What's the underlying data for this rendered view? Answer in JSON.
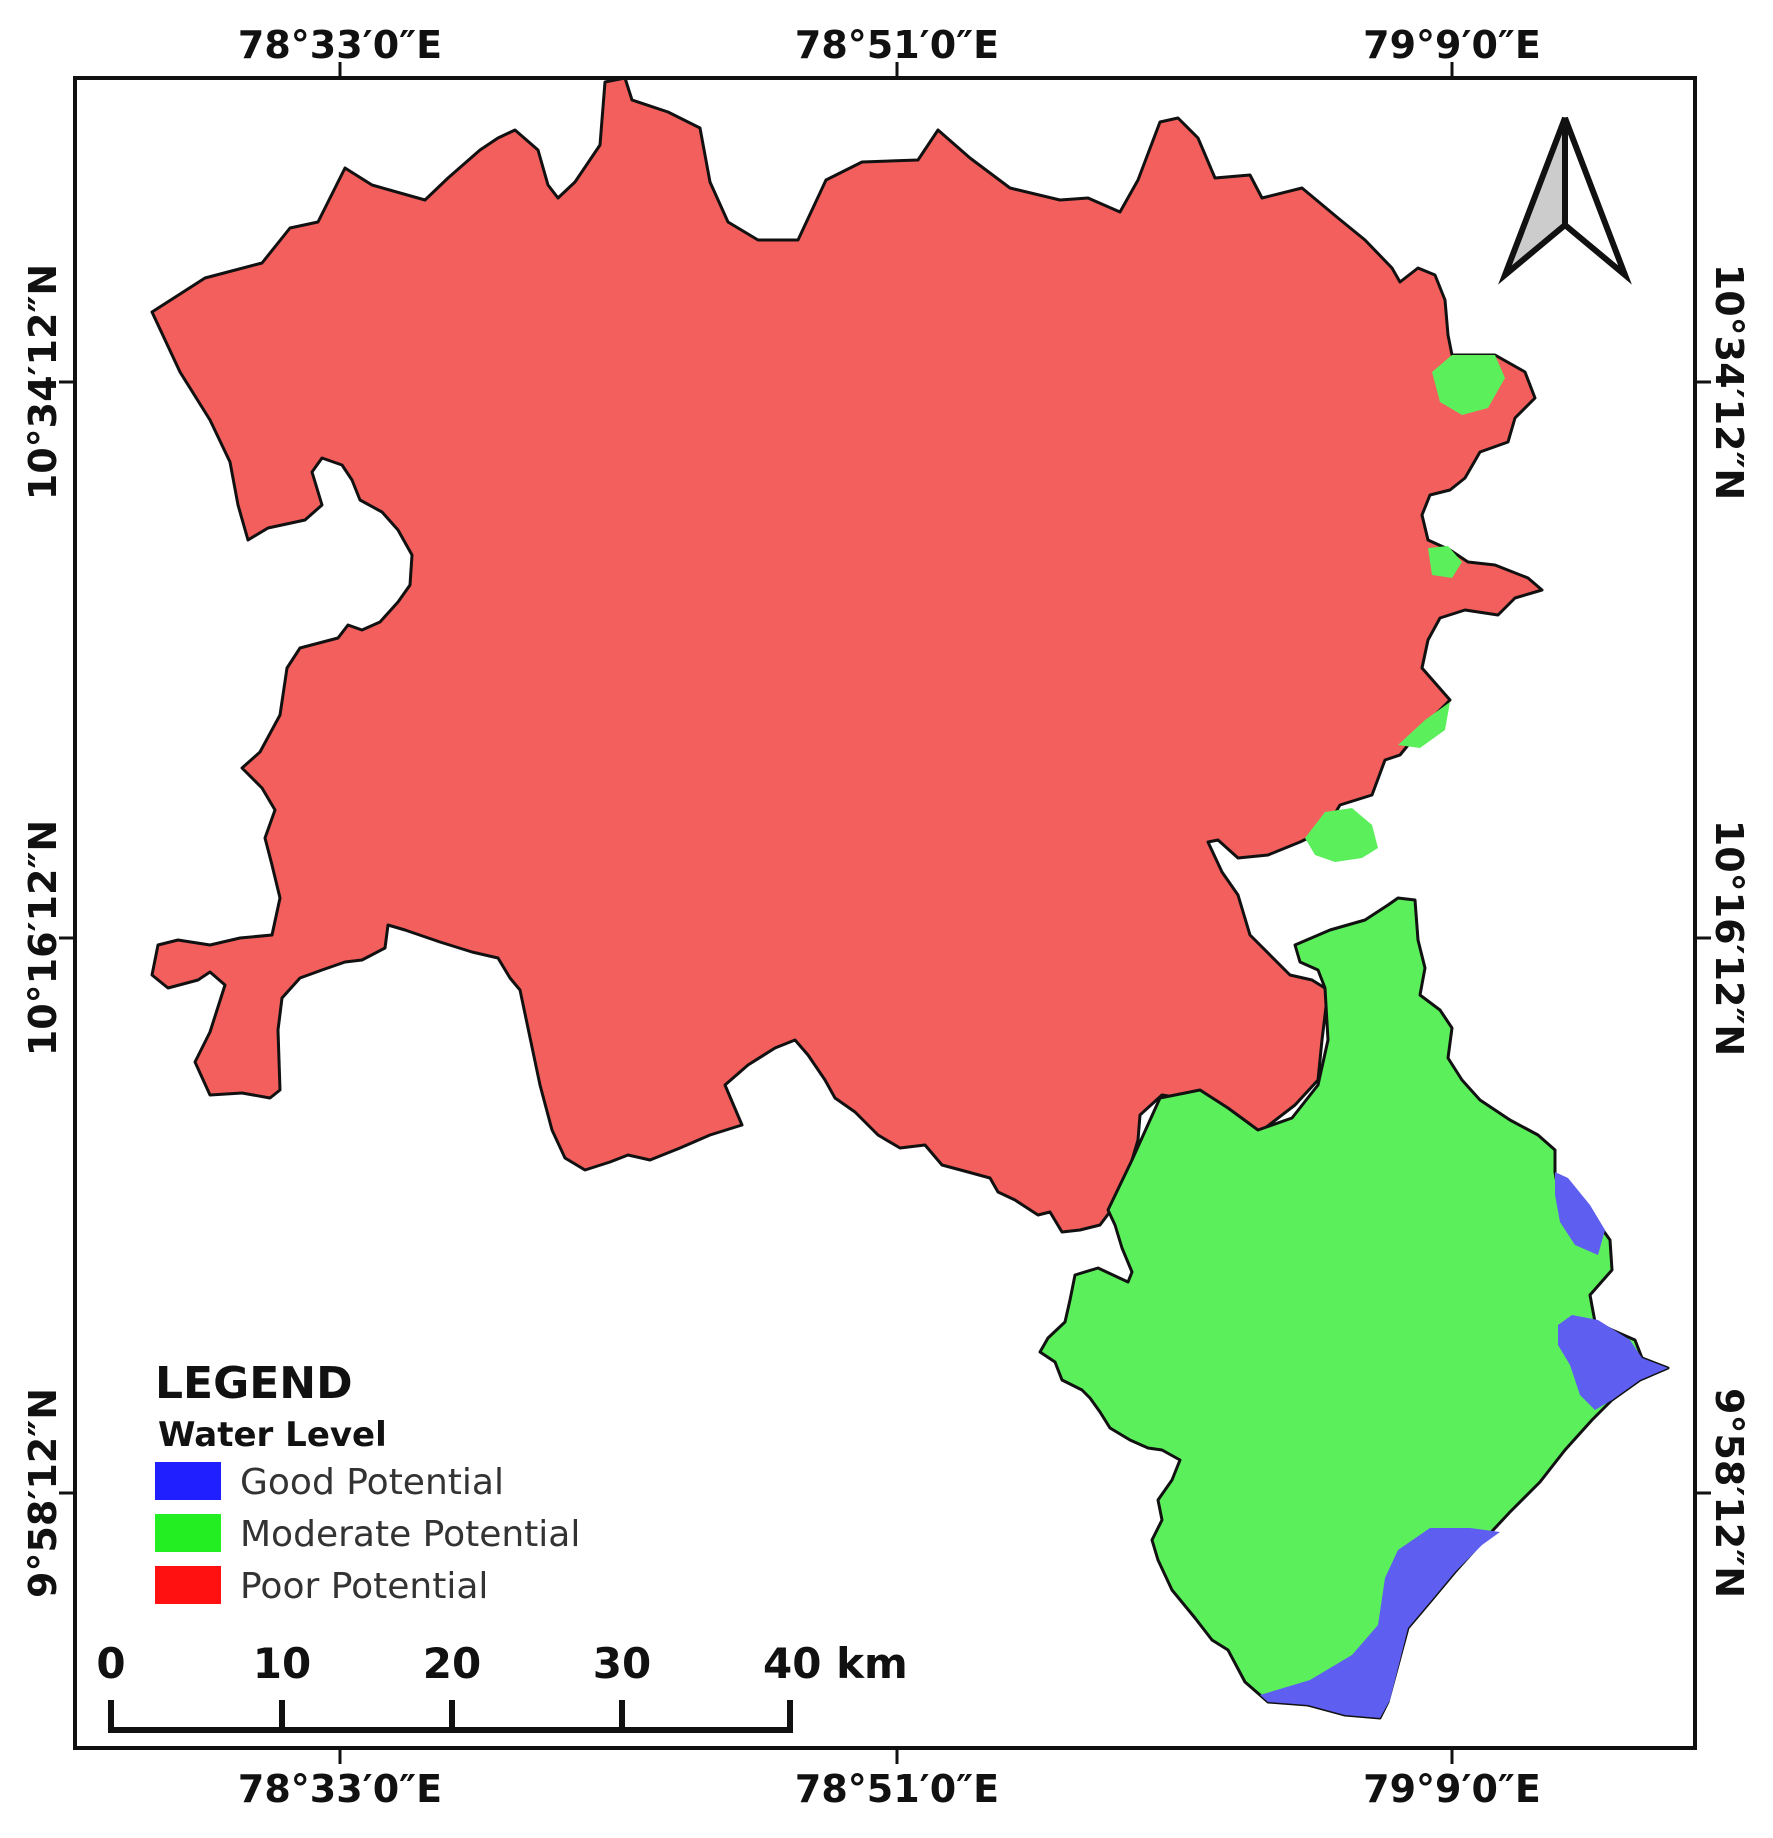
{
  "map": {
    "top_labels": [
      "78°33′0″E",
      "78°51′0″E",
      "79°9′0″E"
    ],
    "bottom_labels": [
      "78°33′0″E",
      "78°51′0″E",
      "79°9′0″E"
    ],
    "left_labels": [
      "10°34′12″N",
      "10°16′12″N",
      "9°58′12″N"
    ],
    "right_labels": [
      "10°34′12″N",
      "10°16′12″N",
      "9°58′12″N"
    ]
  },
  "legend": {
    "title": "LEGEND",
    "subtitle": "Water Level",
    "items": [
      {
        "label": "Good Potential",
        "color": "#1f1fff"
      },
      {
        "label": "Moderate Potential",
        "color": "#22ee22"
      },
      {
        "label": "Poor Potential",
        "color": "#ff1111"
      }
    ]
  },
  "scale_bar": {
    "labels": [
      "0",
      "10",
      "20",
      "30",
      "40 km"
    ]
  },
  "colors": {
    "poor_region": "#f25f5c",
    "moderate_region": "#5cef5c",
    "good_region": "#5e5ef0",
    "frame": "#111111"
  },
  "icons": {
    "north_arrow": "north-arrow-icon"
  }
}
